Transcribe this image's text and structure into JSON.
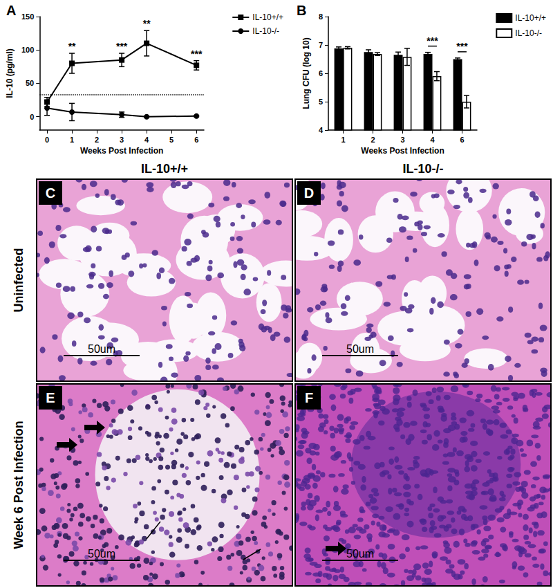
{
  "chart_data": [
    {
      "type": "line",
      "title": "A",
      "xlabel": "Weeks Post Infection",
      "ylabel": "IL-10 (pg/ml)",
      "x": [
        0,
        1,
        3,
        4,
        6
      ],
      "series": [
        {
          "name": "IL-10+/+",
          "color": "#000000",
          "marker": "square",
          "values": [
            22,
            80,
            85,
            110,
            77
          ],
          "errors": [
            7,
            15,
            10,
            19,
            7
          ]
        },
        {
          "name": "IL-10-/-",
          "color": "#000000",
          "marker": "circle",
          "values": [
            13,
            7,
            3,
            0,
            1
          ],
          "errors": [
            11,
            13,
            4,
            1,
            1
          ]
        }
      ],
      "significance": [
        null,
        "**",
        "***",
        "**",
        "***"
      ],
      "reference_line": 33,
      "xlim": [
        -0.3,
        6.3
      ],
      "xticks": [
        0,
        1,
        2,
        3,
        4,
        5,
        6
      ],
      "ylim": [
        -20,
        150
      ],
      "yticks": [
        0,
        50,
        100,
        150
      ],
      "grid": false,
      "legend": "right"
    },
    {
      "type": "bar",
      "title": "B",
      "xlabel": "Weeks Post Infection",
      "ylabel": "Lung CFU (log 10)",
      "categories": [
        "1",
        "2",
        "3",
        "4",
        "6"
      ],
      "series": [
        {
          "name": "IL-10+/+",
          "color": "#000000",
          "values": [
            6.88,
            6.75,
            6.65,
            6.68,
            6.5
          ],
          "errors": [
            0.05,
            0.08,
            0.1,
            0.06,
            0.04
          ]
        },
        {
          "name": "IL-10-/-",
          "color": "#ffffff",
          "values": [
            6.9,
            6.68,
            6.58,
            5.9,
            5.0
          ],
          "errors": [
            0.04,
            0.05,
            0.3,
            0.16,
            0.22
          ]
        }
      ],
      "significance": [
        null,
        null,
        null,
        "***",
        "***"
      ],
      "ylim": [
        4,
        8
      ],
      "yticks": [
        4,
        5,
        6,
        7,
        8
      ],
      "grid": false,
      "legend": "right"
    }
  ],
  "histology": {
    "column_titles": [
      "IL-10+/+",
      "IL-10-/-"
    ],
    "row_titles": [
      "Uninfected",
      "Week 6 Post Infection"
    ],
    "panels": [
      {
        "label": "C",
        "scale_bar": "50um"
      },
      {
        "label": "D",
        "scale_bar": "50um"
      },
      {
        "label": "E",
        "scale_bar": "50um"
      },
      {
        "label": "F",
        "scale_bar": "50um"
      }
    ]
  }
}
